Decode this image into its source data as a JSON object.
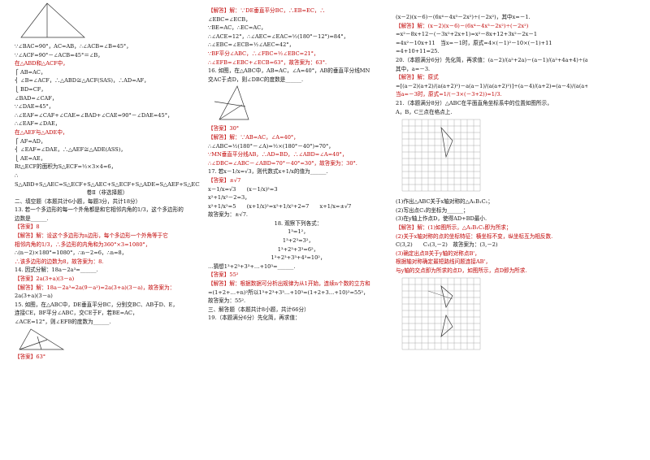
{
  "columns": [
    {
      "sections": [
        [
          {
            "text": "∵∠BAC=90°，AC=AB，∴∠ACB=∠B=45°，"
          },
          {
            "text": "∵∠ACF=90°－∠ACB=45°＝∠B，"
          },
          {
            "text": "在△ABD和△ACF中，",
            "color": "#c00000"
          },
          {
            "text": "⎧ AB=AC，"
          },
          {
            "text": "⎨ ∠B=∠ACF，∴△ABD≅△ACF(SAS)，∴AD=AF，"
          },
          {
            "text": "⎩ BD=CF，"
          },
          {
            "text": "∠BAD=∠CAF，"
          },
          {
            "text": "∵∠DAE=45°，"
          },
          {
            "text": "∴∠EAF=∠CAF+∠CAE=∠BAD+∠CAE=90°－∠DAE=45°，"
          },
          {
            "text": "∴∠EAF=∠DAE，"
          },
          {
            "text": "在△AEF与△ADE中，",
            "color": "#c00000"
          },
          {
            "text": "⎧ AF=AD，"
          },
          {
            "text": "⎨ ∠EAF=∠DAE，∴△AEF≅△ADE(ASS)，"
          },
          {
            "text": "⎩ AE=AE，"
          },
          {
            "text": "Rt△ECF的面积为S△ECF=½×3×4=6，"
          },
          {
            "text": "∴"
          },
          {
            "text": "S△ABD+S△AEC=S△ECF+S△AEC+S△ECF+S△ADE=S△AEF+S△ECF=15+6=21，"
          },
          {
            "text": "卷Ⅱ（非选择题）",
            "align": "center"
          },
          {
            "text": "二、填空题（本题共计6小题，每题3分，共计18分）"
          },
          {
            "text": "13. 若一个多边形的每一个外角都是和它相邻内角的1/3，这个多边形的"
          },
          {
            "text": "边数是______."
          },
          {
            "text": "【答案】8",
            "color": "#c00000"
          },
          {
            "text": "【解答】解：设这个多边形为n边形，每个多边形一个外角等于它",
            "color": "#c00000"
          },
          {
            "text": "相邻内角的1/3，∴多边形的内角和为360°×3=1080°，",
            "color": "#c00000"
          },
          {
            "text": "∴(n－2)×180°=1080°，∴n－2=6，∴n=8，"
          },
          {
            "text": "∴该多边形的边数为8，故答案为：8.",
            "color": "#c00000"
          },
          {
            "text": "14. 因式分解：18a－2a³=______."
          },
          {
            "text": "【答案】2a(3+a)(3－a)",
            "color": "#c00000"
          },
          {
            "text": "【解答】解：18a－2a³=2a(9－a²)=2a(3+a)(3－a)，故答案为：",
            "color": "#c00000"
          },
          {
            "text": "2a(3+a)(3－a)"
          },
          {
            "text": "15. 如图，在△ABC中，DE垂直平分BC，分别交BC、AB于D、E，"
          },
          {
            "text": "连接CE，BF平分∠ABC，交CE于F，若BE=AC，"
          },
          {
            "text": "∠ACE=12°，则∠EFB的度数为______."
          }
        ],
        [
          {
            "text": "【答案】63°",
            "color": "#c00000"
          }
        ]
      ]
    },
    {
      "sections": [
        [
          {
            "text": "【解答】解：∵DE垂直平分BC，∴EB=EC，∴",
            "color": "#c00000"
          },
          {
            "text": "∠EBC=∠ECB，"
          },
          {
            "text": "∵BE=AC，∴EC=AC，"
          },
          {
            "text": "∴∠ACE=12°，∴∠AEC=∠EAC=½(180°－12°)=84°，"
          },
          {
            "text": "∴∠EBC=∠ECB=½∠AEC=42°，"
          },
          {
            "text": "∵BF平分∠ABC，∴∠FBC=½∠EBC=21°，",
            "color": "#c00000"
          },
          {
            "text": "∴∠EFB=∠EBC+∠ECB=63°，故答案为：63°.",
            "color": "#c00000"
          },
          {
            "text": "16. 如图，在△ABC中，AB=AC，∠A=40°，AB的垂直平分线MN"
          },
          {
            "text": "交AC于点D，则∠DBC的度数是______."
          }
        ],
        [
          {
            "text": "【答案】30°",
            "color": "#c00000"
          },
          {
            "text": "【解答】解：∵AB=AC，∠A=40°，",
            "color": "#c00000"
          },
          {
            "text": "∴∠ABC=½(180°－∠A)=½×(180°－40°)=70°，"
          },
          {
            "text": "∵MN垂直平分线AB，∴AD=BD，∴∠ABD=∠A=40°，",
            "color": "#c00000"
          },
          {
            "text": "∴∠DBC=∠ABC－∠ABD=70°－40°=30°，故答案为：30°.",
            "color": "#c00000"
          },
          {
            "text": "17. 若x－1/x=√3，则代数式x+1/x的值为______."
          },
          {
            "text": "【答案】±√7",
            "color": "#c00000"
          },
          {
            "text": "x－1/x=√3　　(x－1/x)²=3"
          },
          {
            "text": "x²+1/x²－2=3，"
          },
          {
            "text": "x²+1/x²=5　　(x+1/x)²=x²+1/x²+2=7　　x+1/x=±√7"
          },
          {
            "text": "故答案为：±√7."
          },
          {
            "text": "18. 观察下列各式：",
            "align": "center"
          },
          {
            "text": "1³=1²，",
            "align": "center"
          },
          {
            "text": "1³+2³=3²，",
            "align": "center"
          },
          {
            "text": "1³+2³+3³=6²，",
            "align": "center"
          },
          {
            "text": "1³+2³+3³+4³=10²，",
            "align": "center"
          },
          {
            "text": "…猜想1³+2³+3³+…+10³=______."
          },
          {
            "text": "【答案】55²",
            "color": "#c00000"
          },
          {
            "text": "【解答】解：根据数据可分析出规律为从1开始，连续n个数的立方和",
            "color": "#c00000"
          },
          {
            "text": "=(1+2+…+n)²所以1³+2³+3³…+10³=(1+2+3…+10)²=55²，"
          },
          {
            "text": "故答案为：55²."
          },
          {
            "text": "三、解答题（本题共计8小题，共计66分）"
          },
          {
            "text": "19.（本题满分6分）先化简，再求值："
          }
        ]
      ]
    },
    {
      "sections": [
        [
          {
            "text": "(x－2)(x－6)－(6x⁴－4x³－2x²)÷(－2x²)，其中x=－1."
          },
          {
            "text": "【解答】解：(x－2)(x－6)－(6x⁴－4x³－2x²)÷(－2x²)",
            "color": "#c00000"
          },
          {
            "text": "=x²－8x+12－(－3x²+2x+1)=x²－8x+12+3x²－2x－1"
          },
          {
            "text": "=4x²－10x+11　当x=－1时，原式=4×(－1)²－10×(－1)+11"
          },
          {
            "text": "=4+10+11=25."
          },
          {
            "text": "20.（本题满分6分）先化简，再求值：(a－2)/(a²+2a)－(a－1)/(a²+4a+4)÷(a－4)/(a+2)，"
          },
          {
            "text": "其中，a=－3."
          },
          {
            "text": "【解答】解：原式",
            "color": "#c00000"
          },
          {
            "text": "=[(a－2)(a+2)/(a(a+2)²)－a(a－1)/(a(a+2)²)]÷(a－4)/(a+2)=(a－4)/(a(a+2)²)·(a+2)/(a－4)=1/(a(a+2))"
          },
          {
            "text": "当a=－3时，原式=1/(－3×(－3+2))=1/3.",
            "color": "#c00000"
          },
          {
            "text": "21.（本题满分8分）△ABC在平面直角坐标系中的位置如图所示，"
          },
          {
            "text": "A，B，C三点在格点上."
          }
        ],
        [
          {
            "text": "(1)作出△ABC关于x轴对称的△A₁B₁C₁；"
          },
          {
            "text": "(2)写出点C₁的坐标为______；"
          },
          {
            "text": "(3)在y轴上作点D，使得AD+BD最小."
          },
          {
            "text": "【解答】解：(1)如图所示，△A₁B₁C₁即为所求；",
            "color": "#c00000"
          },
          {
            "text": "(2)关于x轴对称的点的坐标特征：横坐标不变，纵坐标互为相反数.",
            "color": "#c00000"
          },
          {
            "text": "C(3,2)　　C₁(3,－2)　故答案为：(3,－2)"
          },
          {
            "text": "(3)确定出点B关于y轴的对称点B'，",
            "color": "#c00000"
          },
          {
            "text": "根据轴对称确定最短路线问题连接AB'，",
            "color": "#c00000"
          },
          {
            "text": "与y轴的交点即为所求的点D，如图所示，点D即为所求.",
            "color": "#c00000"
          }
        ]
      ]
    }
  ]
}
